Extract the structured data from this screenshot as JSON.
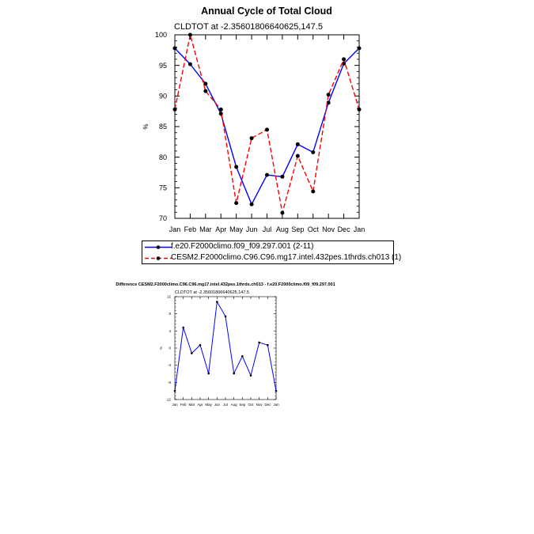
{
  "chart_data": [
    {
      "type": "line",
      "title": "Annual Cycle of Total Cloud",
      "subtitle": "CLDTOT at -2.35601806640625,147.5",
      "xlabel": "",
      "ylabel": "%",
      "categories": [
        "Jan",
        "Feb",
        "Mar",
        "Apr",
        "May",
        "Jun",
        "Jul",
        "Aug",
        "Sep",
        "Oct",
        "Nov",
        "Dec",
        "Jan"
      ],
      "ylim": [
        70,
        100
      ],
      "yticks": [
        70,
        75,
        80,
        85,
        90,
        95,
        100
      ],
      "grid": false,
      "legend_position": "bottom",
      "series": [
        {
          "name": "f.e20.F2000climo.f09_f09.297.001 (2-11)",
          "color": "#0000ff",
          "style": "solid",
          "values": [
            97.8,
            95.2,
            92.0,
            87.1,
            78.4,
            72.3,
            77.1,
            76.8,
            82.1,
            80.8,
            88.9,
            95.3,
            97.8
          ]
        },
        {
          "name": "CESM2.F2000climo.C96.C96.mg17.intel.432pes.1thrds.ch013 (1)",
          "color": "#ff0000",
          "style": "dashed",
          "values": [
            87.8,
            100.0,
            90.8,
            87.8,
            72.5,
            83.1,
            84.5,
            70.9,
            80.2,
            74.4,
            90.2,
            96.0,
            87.8
          ]
        }
      ]
    },
    {
      "type": "line",
      "title": "Difference CESM2.F2000climo.C96.C96.mg17.intel.432pes.1thrds.ch013 - f.e20.F2000climo.f09_f09.297.001",
      "subtitle": "CLDTOT at -2.35601806640625,147.5",
      "xlabel": "",
      "ylabel": "%",
      "categories": [
        "Jan",
        "Feb",
        "Mar",
        "Apr",
        "May",
        "Jun",
        "Jul",
        "Aug",
        "Sep",
        "Oct",
        "Nov",
        "Dec",
        "Jan"
      ],
      "ylim": [
        -12,
        12
      ],
      "yticks": [
        -12,
        -8,
        -4,
        0,
        4,
        8,
        12
      ],
      "grid": false,
      "series": [
        {
          "color": "#0000ff",
          "style": "solid",
          "values": [
            -10.0,
            4.8,
            -1.2,
            0.7,
            -5.9,
            10.8,
            7.4,
            -5.9,
            -1.9,
            -6.4,
            1.3,
            0.7,
            -10.0
          ]
        }
      ]
    }
  ]
}
